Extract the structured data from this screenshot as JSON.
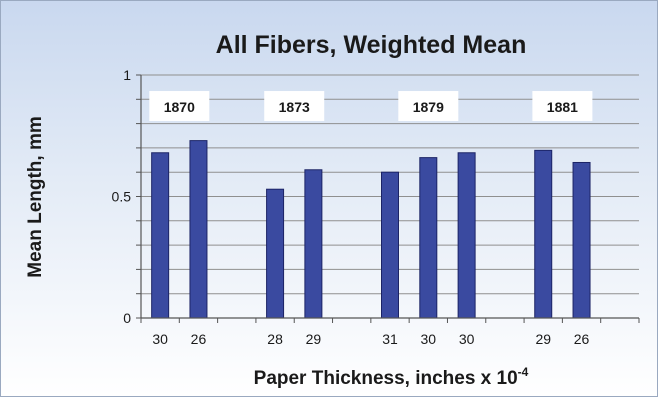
{
  "chart_data": {
    "type": "bar",
    "title": "All Fibers, Weighted Mean",
    "xlabel_main": "Paper Thickness, inches x 10",
    "xlabel_exponent": "-4",
    "ylabel": "Mean Length, mm",
    "ylim": [
      0,
      1
    ],
    "yticks": [
      "0",
      "0.5",
      "1"
    ],
    "categories": [
      "30",
      "26",
      "28",
      "29",
      "31",
      "30",
      "30",
      "29",
      "26"
    ],
    "values": [
      0.68,
      0.73,
      0.53,
      0.61,
      0.6,
      0.66,
      0.68,
      0.69,
      0.64
    ],
    "groups": [
      {
        "label": "1870",
        "bars": [
          0,
          1
        ]
      },
      {
        "label": "1873",
        "bars": [
          2,
          3
        ]
      },
      {
        "label": "1879",
        "bars": [
          4,
          5,
          6
        ]
      },
      {
        "label": "1881",
        "bars": [
          7,
          8
        ]
      }
    ],
    "bar_color": "#3a4aa0",
    "grid": true,
    "legend": "none"
  }
}
